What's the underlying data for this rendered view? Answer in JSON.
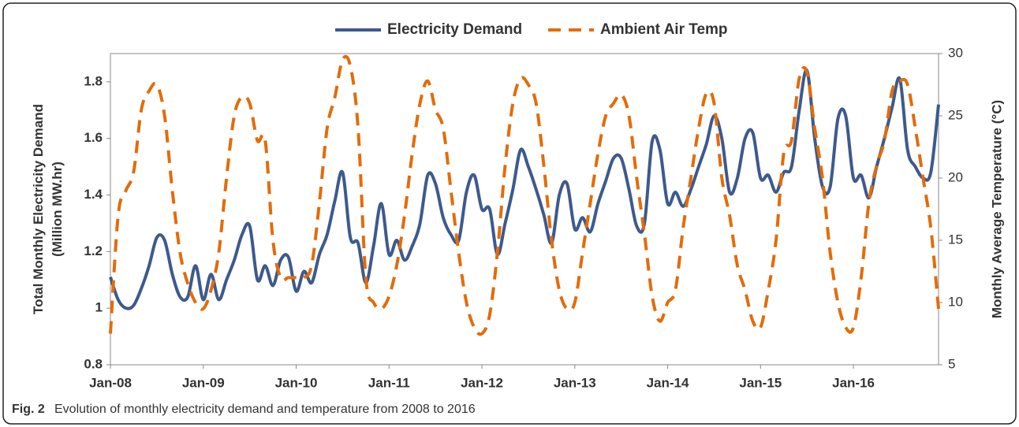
{
  "chart_data": {
    "type": "line",
    "legend_position": "top",
    "caption_label": "Fig. 2",
    "caption": "Evolution of monthly electricity demand and temperature from 2008 to 2016",
    "ylabel": "Total Monthly Electricity Demand\n(Million MW.hr)",
    "y2label": "Monthly Average Temperature (°C)",
    "categories": [
      "Jan-08",
      null,
      null,
      null,
      null,
      null,
      null,
      null,
      null,
      null,
      null,
      null,
      "Jan-09",
      null,
      null,
      null,
      null,
      null,
      null,
      null,
      null,
      null,
      null,
      null,
      "Jan-10",
      null,
      null,
      null,
      null,
      null,
      null,
      null,
      null,
      null,
      null,
      null,
      "Jan-11",
      null,
      null,
      null,
      null,
      null,
      null,
      null,
      null,
      null,
      null,
      null,
      "Jan-12",
      null,
      null,
      null,
      null,
      null,
      null,
      null,
      null,
      null,
      null,
      null,
      "Jan-13",
      null,
      null,
      null,
      null,
      null,
      null,
      null,
      null,
      null,
      null,
      null,
      "Jan-14",
      null,
      null,
      null,
      null,
      null,
      null,
      null,
      null,
      null,
      null,
      null,
      "Jan-15",
      null,
      null,
      null,
      null,
      null,
      null,
      null,
      null,
      null,
      null,
      null,
      "Jan-16",
      null,
      null,
      null,
      null,
      null,
      null,
      null,
      null,
      null,
      null,
      null
    ],
    "series": [
      {
        "name": "Electricity Demand",
        "color": "#3d5a8c",
        "dash": "solid",
        "values": [
          1.11,
          1.03,
          1.0,
          1.01,
          1.07,
          1.15,
          1.25,
          1.24,
          1.12,
          1.04,
          1.04,
          1.15,
          1.03,
          1.12,
          1.03,
          1.1,
          1.17,
          1.26,
          1.29,
          1.1,
          1.15,
          1.08,
          1.17,
          1.18,
          1.06,
          1.13,
          1.09,
          1.19,
          1.26,
          1.38,
          1.48,
          1.25,
          1.23,
          1.09,
          1.22,
          1.37,
          1.19,
          1.24,
          1.17,
          1.22,
          1.3,
          1.47,
          1.44,
          1.32,
          1.26,
          1.24,
          1.41,
          1.47,
          1.35,
          1.35,
          1.19,
          1.3,
          1.42,
          1.56,
          1.5,
          1.42,
          1.33,
          1.23,
          1.4,
          1.44,
          1.28,
          1.32,
          1.27,
          1.37,
          1.45,
          1.53,
          1.53,
          1.42,
          1.29,
          1.3,
          1.59,
          1.56,
          1.37,
          1.41,
          1.36,
          1.42,
          1.5,
          1.58,
          1.68,
          1.6,
          1.41,
          1.46,
          1.6,
          1.62,
          1.46,
          1.47,
          1.41,
          1.48,
          1.5,
          1.7,
          1.84,
          1.6,
          1.43,
          1.43,
          1.67,
          1.68,
          1.46,
          1.47,
          1.39,
          1.5,
          1.6,
          1.71,
          1.81,
          1.56,
          1.5,
          1.46,
          1.48,
          1.72
        ]
      },
      {
        "name": "Ambient Air Temp",
        "color": "#e36c0a",
        "dash": "dashed",
        "axis": "y2",
        "values": [
          7.5,
          17,
          19,
          20.5,
          25.5,
          27,
          27.5,
          25,
          19,
          14,
          11.5,
          10,
          9.5,
          11,
          14,
          20,
          25,
          26.5,
          26,
          23,
          23,
          15,
          12,
          12,
          12,
          12,
          13,
          18,
          24,
          26.5,
          29.5,
          29,
          24,
          12,
          10,
          9.5,
          10.5,
          13,
          17,
          22,
          26,
          27.8,
          25.5,
          24,
          19,
          14,
          10,
          8,
          7.5,
          9,
          14,
          21,
          26,
          28,
          27.5,
          26,
          21,
          15,
          11,
          9.5,
          10,
          14,
          18,
          22,
          25,
          26,
          26.7,
          25,
          20,
          15.5,
          10.5,
          8.5,
          10,
          11,
          16,
          20,
          24,
          26.8,
          26,
          20,
          17,
          13,
          11,
          8.5,
          8,
          11,
          15,
          22,
          23,
          28,
          28.5,
          24,
          20,
          14,
          10,
          8,
          8,
          12,
          18,
          21,
          23,
          27,
          27.8,
          27.5,
          24,
          20,
          16,
          9.5
        ]
      }
    ],
    "ylim": [
      0.8,
      1.9
    ],
    "yticks": [
      0.8,
      1,
      1.2,
      1.4,
      1.6,
      1.8
    ],
    "y2lim": [
      5,
      30
    ],
    "y2ticks": [
      5,
      10,
      15,
      20,
      25,
      30
    ],
    "grid": false
  }
}
